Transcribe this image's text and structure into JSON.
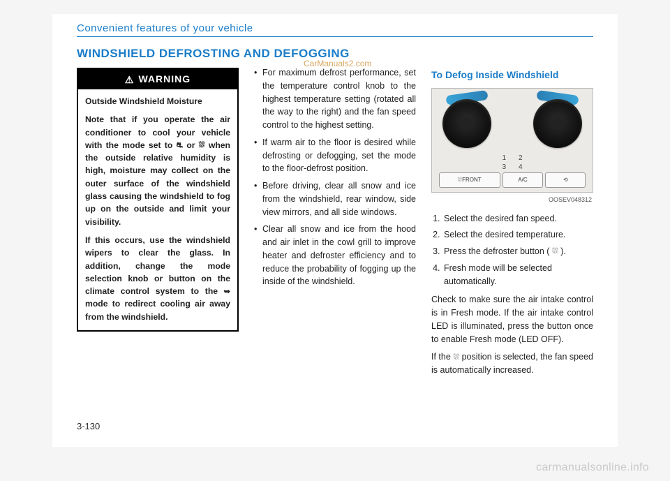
{
  "header": "Convenient features of your vehicle",
  "title": "WINDSHIELD DEFROSTING AND DEFOGGING",
  "watermark_top": "CarManuals2.com",
  "warning": {
    "label": "WARNING",
    "subtitle": "Outside Windshield Moisture",
    "p1_a": "Note that if you operate the air conditioner to cool your vehicle with the mode set to ",
    "p1_b": " or ",
    "p1_c": " when the outside relative humidity is high, moisture may collect on the outer surface of the windshield glass causing the windshield to fog up on the outside and limit your visibility.",
    "p2_a": "If this occurs, use the windshield wipers to clear the glass. In addition, change the mode selection knob or button on the climate control system to the ",
    "p2_b": " mode to redirect cooling air away from the windshield."
  },
  "col2": {
    "b1": "For maximum defrost performance, set the temperature control knob to the highest temperature setting (rotated all the way to the right) and the fan speed control to the highest setting.",
    "b2": "If warm air to the floor is desired while defrosting or defogging, set the mode to the floor-defrost position.",
    "b3": "Before driving, clear all snow and ice from the windshield, rear window, side view mirrors, and all side windows.",
    "b4": "Clear all snow and ice from the hood and air inlet in the cowl grill to improve heater and defroster efficiency and to reduce the probability of fogging up the inside of the windshield."
  },
  "col3": {
    "heading": "To Defog Inside Windshield",
    "diagram_labels": {
      "n1": "1",
      "n2": "2",
      "n3": "3",
      "n4": "4"
    },
    "btn_front": "FRONT",
    "btn_ac": "A/C",
    "code": "OOSEV048312",
    "s1": "Select the desired fan speed.",
    "s2": "Select the desired temperature.",
    "s3_a": "Press the defroster button ( ",
    "s3_b": " ).",
    "s4": "Fresh mode will be selected automatically.",
    "p1": "Check to make sure the air intake control is in Fresh mode. If the air intake control LED is illuminated, press the button once to enable Fresh mode (LED OFF).",
    "p2_a": "If the ",
    "p2_b": " position is selected, the fan speed is automatically increased."
  },
  "page_number": "3-130",
  "footer_watermark": "carmanualsonline.info"
}
